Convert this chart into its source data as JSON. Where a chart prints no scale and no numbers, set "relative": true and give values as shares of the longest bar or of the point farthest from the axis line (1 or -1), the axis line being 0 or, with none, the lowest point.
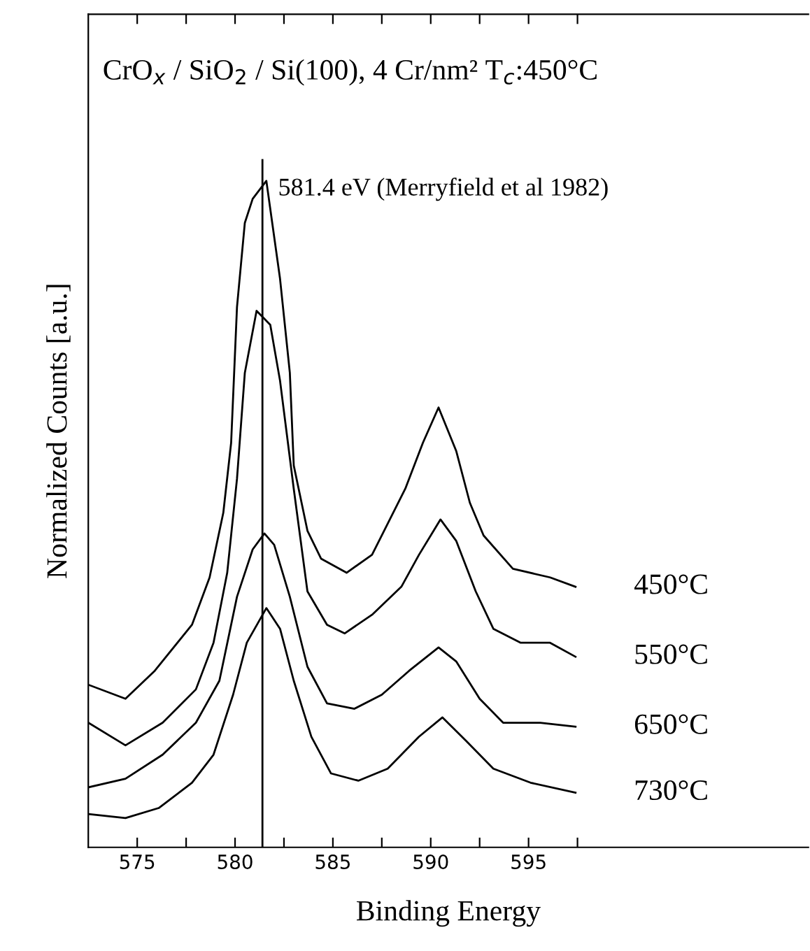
{
  "chart_data": {
    "type": "line",
    "title": "CrO$_{x}$ / SiO$_{2}$ / Si(100), 4 Cr/nm² T$_{c}$:450°C",
    "xlabel": "Binding Energy",
    "ylabel": "Normalized Counts [a.u.]",
    "relative": true,
    "tick_labels": "x",
    "legend": false,
    "grid": false,
    "marker": "none",
    "line_style": "solid",
    "xlim": [
      572.5,
      609.3
    ],
    "xticks": [
      575,
      {
        "value": 577.5,
        "label": null
      },
      580,
      {
        "value": 582.5,
        "label": null
      },
      585,
      {
        "value": 587.5,
        "label": null
      },
      590,
      {
        "value": 592.5,
        "label": null
      },
      595,
      {
        "value": 597.5,
        "label": null
      }
    ],
    "ref_lines": [
      {
        "axis": "x",
        "value": 581.4,
        "label": "581.4 eV (Merryfield et al 1982)",
        "color": "#000000",
        "line_style": "solid"
      }
    ],
    "series": [
      {
        "name": "450°C",
        "color": "#000000",
        "x": [
          572.5,
          574.4,
          575.9,
          577.8,
          578.7,
          579.4,
          579.8,
          580.1,
          580.5,
          580.9,
          581.6,
          581.9,
          582.3,
          582.8,
          583.0,
          583.7,
          584.4,
          585.7,
          587.0,
          588.7,
          589.6,
          590.4,
          591.3,
          592.0,
          592.7,
          594.2,
          596.1,
          597.4
        ],
        "values": [
          0.244,
          0.223,
          0.265,
          0.334,
          0.405,
          0.502,
          0.607,
          0.811,
          0.937,
          0.973,
          1.0,
          0.937,
          0.853,
          0.712,
          0.573,
          0.475,
          0.433,
          0.412,
          0.439,
          0.538,
          0.607,
          0.66,
          0.595,
          0.517,
          0.468,
          0.418,
          0.405,
          0.391
        ]
      },
      {
        "name": "550°C",
        "color": "#000000",
        "x": [
          572.5,
          574.4,
          576.3,
          578.0,
          578.9,
          579.6,
          580.1,
          580.5,
          581.1,
          581.8,
          582.3,
          583.0,
          583.7,
          584.7,
          585.6,
          587.0,
          588.5,
          589.4,
          590.5,
          591.3,
          592.3,
          593.2,
          594.6,
          596.1,
          597.4
        ],
        "values": [
          0.187,
          0.153,
          0.187,
          0.237,
          0.307,
          0.412,
          0.553,
          0.712,
          0.805,
          0.784,
          0.7,
          0.538,
          0.384,
          0.334,
          0.321,
          0.349,
          0.391,
          0.439,
          0.492,
          0.46,
          0.384,
          0.328,
          0.307,
          0.307,
          0.286
        ]
      },
      {
        "name": "650°C",
        "color": "#000000",
        "x": [
          572.5,
          574.4,
          576.3,
          578.0,
          579.2,
          580.1,
          580.9,
          581.5,
          582.0,
          582.8,
          583.7,
          584.7,
          586.1,
          587.5,
          588.9,
          590.4,
          591.3,
          592.5,
          593.7,
          595.6,
          597.4
        ],
        "values": [
          0.09,
          0.103,
          0.139,
          0.187,
          0.25,
          0.376,
          0.447,
          0.471,
          0.454,
          0.376,
          0.271,
          0.216,
          0.208,
          0.229,
          0.265,
          0.3,
          0.279,
          0.223,
          0.187,
          0.187,
          0.181
        ]
      },
      {
        "name": "730°C",
        "color": "#000000",
        "x": [
          572.5,
          574.4,
          576.1,
          577.8,
          578.9,
          579.9,
          580.6,
          581.6,
          582.3,
          583.0,
          583.9,
          584.9,
          586.3,
          587.8,
          589.4,
          590.6,
          591.8,
          593.2,
          595.1,
          597.4
        ],
        "values": [
          0.05,
          0.044,
          0.059,
          0.097,
          0.139,
          0.229,
          0.307,
          0.359,
          0.328,
          0.25,
          0.166,
          0.111,
          0.1,
          0.118,
          0.166,
          0.195,
          0.16,
          0.118,
          0.097,
          0.082
        ]
      }
    ]
  }
}
